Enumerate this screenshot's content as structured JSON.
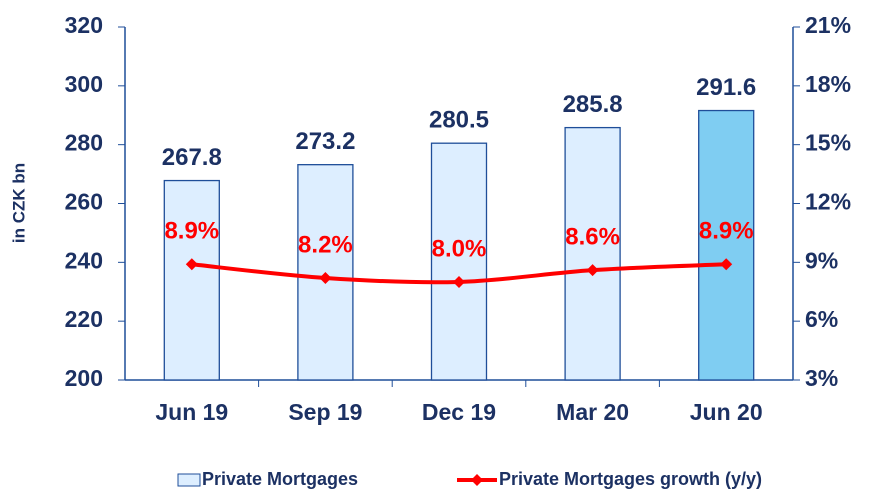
{
  "chart_data": {
    "type": "bar",
    "y_label": "in CZK bn",
    "categories": [
      "Jun 19",
      "Sep 19",
      "Dec 19",
      "Mar 20",
      "Jun 20"
    ],
    "series": [
      {
        "name": "Private Mortgages",
        "type": "bar",
        "color": "#ddeeff",
        "edge_color": "#1f4e99",
        "colors": [
          "#ddeeff",
          "#ddeeff",
          "#ddeeff",
          "#ddeeff",
          "#7fcdf2"
        ],
        "values": [
          267.8,
          273.2,
          280.5,
          285.8,
          291.6
        ]
      },
      {
        "name": "Private Mortgages growth (y/y)",
        "type": "line",
        "color": "#ff0000",
        "axis": "y2",
        "values": [
          8.9,
          8.2,
          8.0,
          8.6,
          8.9
        ],
        "value_labels": [
          "8.9%",
          "8.2%",
          "8.0%",
          "8.6%",
          "8.9%"
        ]
      }
    ],
    "ylim": [
      200,
      320
    ],
    "yticks": [
      200,
      220,
      240,
      260,
      280,
      300,
      320
    ],
    "y2lim": [
      3,
      21
    ],
    "y2ticks": [
      {
        "value": 3,
        "label": "3%"
      },
      {
        "value": 6,
        "label": "6%"
      },
      {
        "value": 9,
        "label": "9%"
      },
      {
        "value": 12,
        "label": "12%"
      },
      {
        "value": 15,
        "label": "15%"
      },
      {
        "value": 18,
        "label": "18%"
      },
      {
        "value": 21,
        "label": "21%"
      }
    ],
    "legend": "bottom"
  }
}
